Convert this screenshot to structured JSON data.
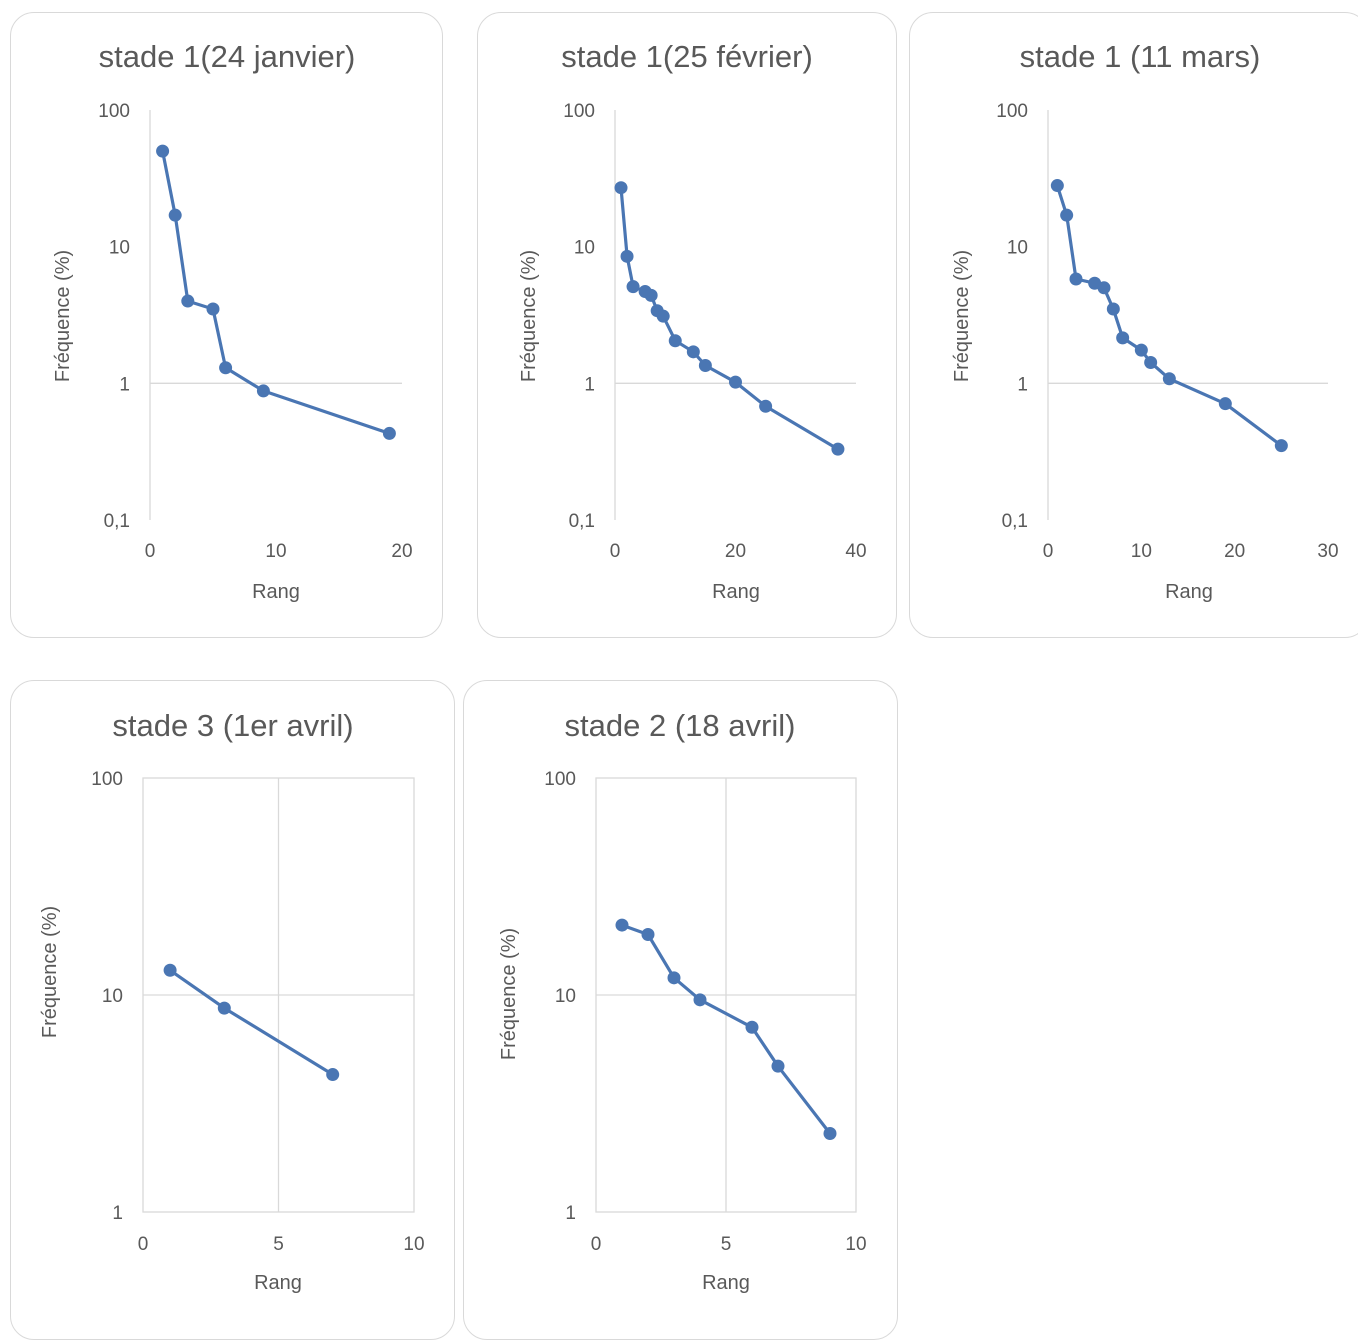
{
  "chart_data": [
    {
      "type": "line",
      "title": "stade 1(24 janvier)",
      "xlabel": "Rang",
      "ylabel": "Fréquence (%)",
      "yscale": "log",
      "xlim": [
        0,
        20
      ],
      "ylim": [
        0.1,
        100
      ],
      "xticks": [
        "0",
        "10",
        "20"
      ],
      "yticks": [
        "0,1",
        "1",
        "10",
        "100"
      ],
      "grid": "horizontal at 1",
      "series": [
        {
          "x": [
            1,
            2,
            3,
            5,
            6,
            9,
            19
          ],
          "y": [
            50,
            17,
            4,
            3.5,
            1.3,
            0.88,
            0.43
          ]
        }
      ]
    },
    {
      "type": "line",
      "title": "stade 1(25 février)",
      "xlabel": "Rang",
      "ylabel": "Fréquence (%)",
      "yscale": "log",
      "xlim": [
        0,
        40
      ],
      "ylim": [
        0.1,
        100
      ],
      "xticks": [
        "0",
        "20",
        "40"
      ],
      "yticks": [
        "0,1",
        "1",
        "10",
        "100"
      ],
      "grid": "horizontal at 1",
      "series": [
        {
          "x": [
            1,
            2,
            3,
            5,
            6,
            7,
            8,
            10,
            13,
            15,
            20,
            25,
            37
          ],
          "y": [
            27,
            8.5,
            5.1,
            4.7,
            4.4,
            3.4,
            3.1,
            2.05,
            1.7,
            1.35,
            1.02,
            0.68,
            0.33
          ]
        }
      ]
    },
    {
      "type": "line",
      "title": "stade 1 (11 mars)",
      "xlabel": "Rang",
      "ylabel": "Fréquence (%)",
      "yscale": "log",
      "xlim": [
        0,
        30
      ],
      "ylim": [
        0.1,
        100
      ],
      "xticks": [
        "0",
        "10",
        "20",
        "30"
      ],
      "yticks": [
        "0,1",
        "1",
        "10",
        "100"
      ],
      "grid": "horizontal at 1",
      "series": [
        {
          "x": [
            1,
            2,
            3,
            5,
            6,
            7,
            8,
            10,
            11,
            13,
            19,
            25
          ],
          "y": [
            28,
            17,
            5.8,
            5.4,
            5.0,
            3.5,
            2.15,
            1.75,
            1.42,
            1.08,
            0.71,
            0.35
          ]
        }
      ]
    },
    {
      "type": "line",
      "title": "stade 3 (1er avril)",
      "xlabel": "Rang",
      "ylabel": "Fréquence (%)",
      "yscale": "log",
      "xlim": [
        0,
        10
      ],
      "ylim": [
        1,
        100
      ],
      "xticks": [
        "0",
        "5",
        "10"
      ],
      "yticks": [
        "1",
        "10",
        "100"
      ],
      "grid": "both",
      "series": [
        {
          "x": [
            1,
            3,
            7
          ],
          "y": [
            13,
            8.7,
            4.3
          ]
        }
      ]
    },
    {
      "type": "line",
      "title": "stade 2 (18 avril)",
      "xlabel": "Rang",
      "ylabel": "Fréquence (%)",
      "yscale": "log",
      "xlim": [
        0,
        10
      ],
      "ylim": [
        1,
        100
      ],
      "xticks": [
        "0",
        "5",
        "10"
      ],
      "yticks": [
        "1",
        "10",
        "100"
      ],
      "grid": "both",
      "series": [
        {
          "x": [
            1,
            2,
            3,
            4,
            6,
            7,
            9
          ],
          "y": [
            21,
            19,
            12,
            9.5,
            7.1,
            4.7,
            2.3
          ]
        }
      ]
    }
  ],
  "colors": {
    "series": "#4a76b3",
    "text": "#595959",
    "gridline": "#d9d9d9",
    "card_border": "#d9d9d9"
  }
}
